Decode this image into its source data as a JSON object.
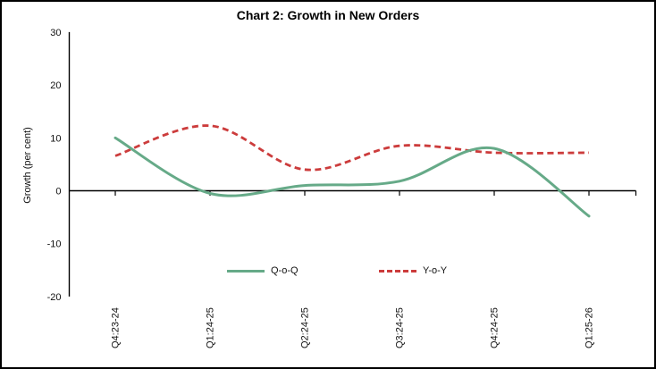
{
  "title": "Chart 2: Growth in New Orders",
  "chart_data": {
    "type": "line",
    "title": "Chart 2: Growth in New Orders",
    "xlabel": "",
    "ylabel": "Growth (per cent)",
    "categories": [
      "Q4:23-24",
      "Q1:24-25",
      "Q2:24-25",
      "Q3:24-25",
      "Q4:24-25",
      "Q1:25-26"
    ],
    "series": [
      {
        "name": "Q-o-Q",
        "style": "solid",
        "color": "#66aa88",
        "values": [
          10.0,
          -0.5,
          1.0,
          1.8,
          8.0,
          -4.8
        ]
      },
      {
        "name": "Y-o-Y",
        "style": "dashed",
        "color": "#cc3c3c",
        "values": [
          6.6,
          12.3,
          4.0,
          8.5,
          7.2,
          7.2
        ]
      }
    ],
    "ylim": [
      -20,
      30
    ],
    "yticks": [
      30,
      20,
      10,
      0,
      -10,
      -20
    ],
    "grid": false,
    "smoothed": true,
    "legend_position": "bottom-inside",
    "axis_color": "#000000",
    "label_color": "#111111"
  }
}
